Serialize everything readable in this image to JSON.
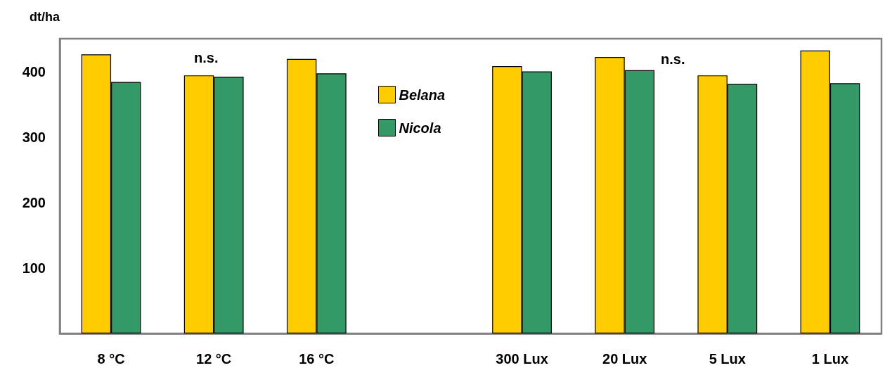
{
  "chart_data": {
    "type": "bar",
    "ylabel": "dt/ha",
    "categories": [
      "8 °C",
      "12 °C",
      "16 °C",
      null,
      "300 Lux",
      "20 Lux",
      "5 Lux",
      "1 Lux"
    ],
    "series": [
      {
        "name": "Belana",
        "color": "#ffcc00",
        "values": [
          426,
          394,
          419,
          null,
          408,
          422,
          394,
          432
        ]
      },
      {
        "name": "Nicola",
        "color": "#339966",
        "values": [
          384,
          392,
          397,
          null,
          400,
          402,
          381,
          382
        ]
      }
    ],
    "ylim": [
      0,
      450
    ],
    "yticks": [
      100,
      200,
      300,
      400
    ],
    "grid": false,
    "legend": "top",
    "annotations": [
      "n.s.",
      "n.s."
    ]
  }
}
